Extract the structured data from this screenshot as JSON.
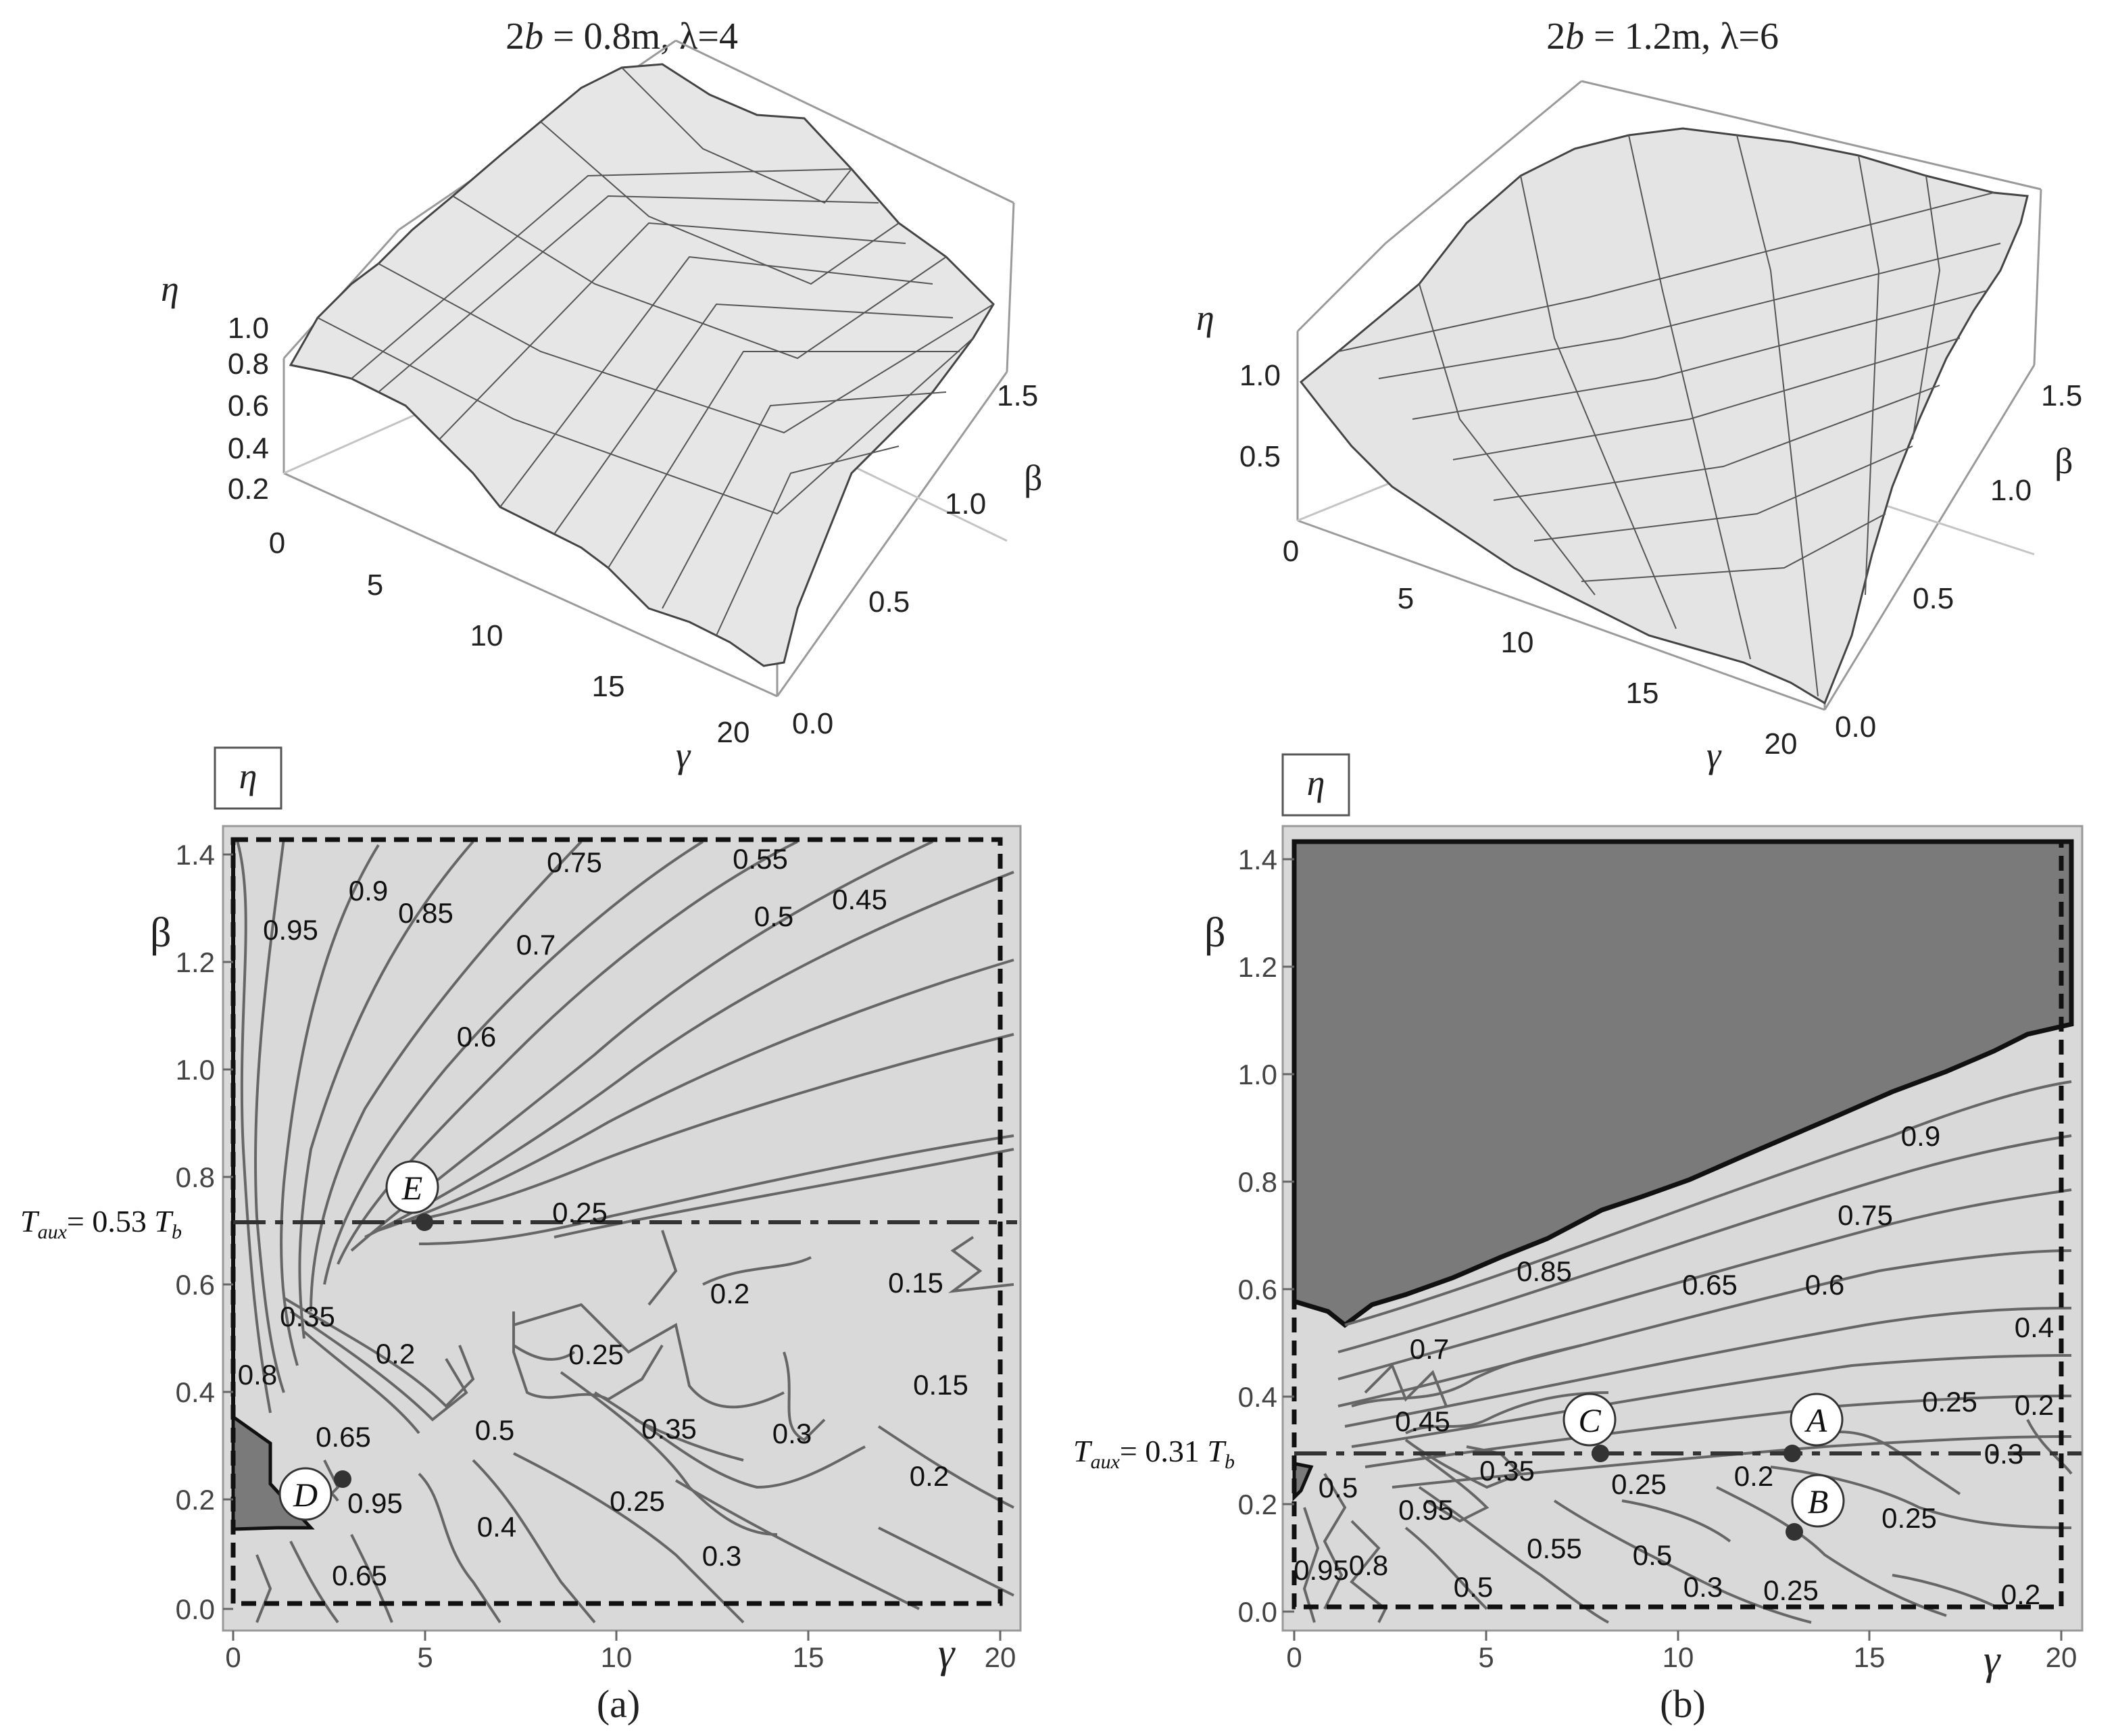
{
  "panels": [
    {
      "id": "a",
      "title_prefix": "2",
      "title_b": "b",
      "title_rest": " = 0.8m,  λ=4",
      "surface_axes": {
        "z": "η",
        "y": "β",
        "x": "γ"
      },
      "surface_z_ticks": [
        "1.0",
        "0.8",
        "0.6",
        "0.4",
        "0.2"
      ],
      "surface_y_ticks": [
        "1.5",
        "1.0",
        "0.5",
        "0.0"
      ],
      "surface_x_ticks": [
        "0",
        "5",
        "10",
        "15",
        "20"
      ],
      "contour_legend": "η",
      "xlabel": "γ",
      "ylabel": "β",
      "x_ticks": [
        "0",
        "5",
        "10",
        "15",
        "20"
      ],
      "y_ticks": [
        "0.0",
        "0.2",
        "0.4",
        "0.6",
        "0.8",
        "1.0",
        "1.2",
        "1.4"
      ],
      "t_aux_prefix": "T",
      "t_aux_sub": "aux",
      "t_aux_value": "= 0.53 ",
      "t_aux_tb": "T",
      "t_aux_tb_sub": "b",
      "contour_labels": [
        "0.75",
        "0.55",
        "0.9",
        "0.85",
        "0.5",
        "0.45",
        "0.95",
        "0.7",
        "0.6",
        "0.25",
        "0.2",
        "0.15",
        "0.35",
        "0.2",
        "0.25",
        "0.8",
        "0.15",
        "0.65",
        "0.5",
        "0.35",
        "0.3",
        "0.2",
        "0.95",
        "0.25",
        "0.4",
        "0.3",
        "0.65"
      ],
      "points": [
        "E",
        "D"
      ],
      "caption": "(a)"
    },
    {
      "id": "b",
      "title_prefix": "2",
      "title_b": "b",
      "title_rest": " = 1.2m,  λ=6",
      "surface_axes": {
        "z": "η",
        "y": "β",
        "x": "γ"
      },
      "surface_z_ticks": [
        "1.0",
        "0.5"
      ],
      "surface_y_ticks": [
        "1.5",
        "1.0",
        "0.5",
        "0.0"
      ],
      "surface_x_ticks": [
        "0",
        "5",
        "10",
        "15",
        "20"
      ],
      "contour_legend": "η",
      "xlabel": "γ",
      "ylabel": "β",
      "x_ticks": [
        "0",
        "5",
        "10",
        "15",
        "20"
      ],
      "y_ticks": [
        "0.0",
        "0.2",
        "0.4",
        "0.6",
        "0.8",
        "1.0",
        "1.2",
        "1.4"
      ],
      "t_aux_prefix": "T",
      "t_aux_sub": "aux",
      "t_aux_value": "= 0.31 ",
      "t_aux_tb": "T",
      "t_aux_tb_sub": "b",
      "contour_labels": [
        "0.9",
        "0.75",
        "0.85",
        "0.65",
        "0.6",
        "0.7",
        "0.4",
        "0.45",
        "0.25",
        "0.2",
        "0.35",
        "0.25",
        "0.2",
        "0.3",
        "0.5",
        "0.95",
        "0.25",
        "0.95",
        "0.8",
        "0.5",
        "0.55",
        "0.5",
        "0.3",
        "0.25",
        "0.2"
      ],
      "points": [
        "C",
        "A",
        "B"
      ],
      "caption": "(b)"
    }
  ],
  "chart_data": [
    {
      "type": "surface",
      "title": "2b = 0.8m, λ=4",
      "xlabel": "γ",
      "ylabel": "β",
      "zlabel": "η",
      "xlim": [
        0,
        20
      ],
      "ylim": [
        0,
        1.5
      ],
      "zlim": [
        0,
        1.0
      ]
    },
    {
      "type": "surface",
      "title": "2b = 1.2m, λ=6",
      "xlabel": "γ",
      "ylabel": "β",
      "zlabel": "η",
      "xlim": [
        0,
        20
      ],
      "ylim": [
        0,
        1.5
      ],
      "zlim": [
        0,
        1.0
      ]
    },
    {
      "type": "contour",
      "xlabel": "γ",
      "ylabel": "β",
      "legend": "η",
      "xlim": [
        0,
        20
      ],
      "ylim": [
        0,
        1.5
      ],
      "t_aux_beta": 0.53,
      "contour_levels": [
        0.15,
        0.2,
        0.25,
        0.3,
        0.35,
        0.4,
        0.45,
        0.5,
        0.55,
        0.6,
        0.65,
        0.7,
        0.75,
        0.8,
        0.85,
        0.9,
        0.95
      ],
      "points": [
        {
          "name": "E",
          "gamma": 5,
          "beta": 0.53
        },
        {
          "name": "D",
          "gamma": 3,
          "beta": 0.26
        }
      ]
    },
    {
      "type": "contour",
      "xlabel": "γ",
      "ylabel": "β",
      "legend": "η",
      "xlim": [
        0,
        20
      ],
      "ylim": [
        0,
        1.5
      ],
      "t_aux_beta": 0.31,
      "contour_levels": [
        0.2,
        0.25,
        0.3,
        0.35,
        0.4,
        0.45,
        0.5,
        0.55,
        0.6,
        0.65,
        0.7,
        0.75,
        0.8,
        0.85,
        0.9,
        0.95
      ],
      "points": [
        {
          "name": "C",
          "gamma": 8,
          "beta": 0.31
        },
        {
          "name": "A",
          "gamma": 13,
          "beta": 0.31
        },
        {
          "name": "B",
          "gamma": 13,
          "beta": 0.16
        }
      ]
    }
  ]
}
